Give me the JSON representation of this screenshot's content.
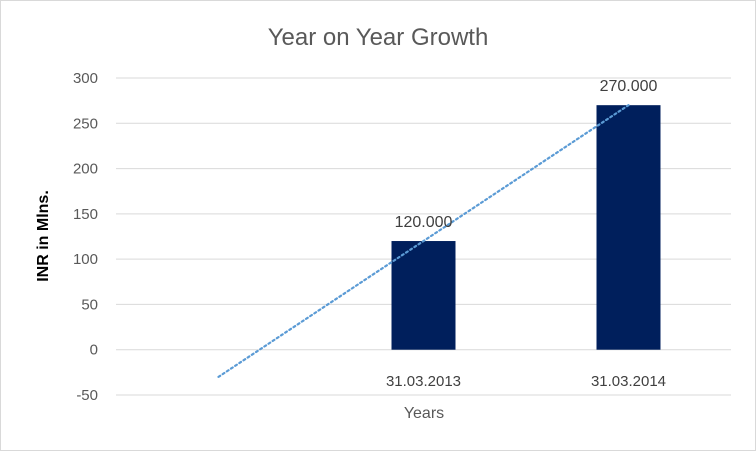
{
  "chart_data": {
    "type": "bar",
    "title": "Year on Year Growth",
    "xlabel": "Years",
    "ylabel": "INR in Mlns.",
    "categories": [
      "",
      "31.03.2013",
      "31.03.2014"
    ],
    "values": [
      null,
      120,
      270
    ],
    "data_labels": [
      "",
      "120.000",
      "270.000"
    ],
    "yticks": [
      "300",
      "250",
      "200",
      "150",
      "100",
      "50",
      "0",
      "-50"
    ],
    "ylim": [
      -50,
      300
    ],
    "bar_color": "#001f5c",
    "trendline": {
      "type": "linear",
      "style": "dotted",
      "color": "#5b9bd5",
      "start": [
        0,
        -30
      ],
      "end": [
        2,
        270
      ]
    },
    "grid": true,
    "legend": "none"
  }
}
